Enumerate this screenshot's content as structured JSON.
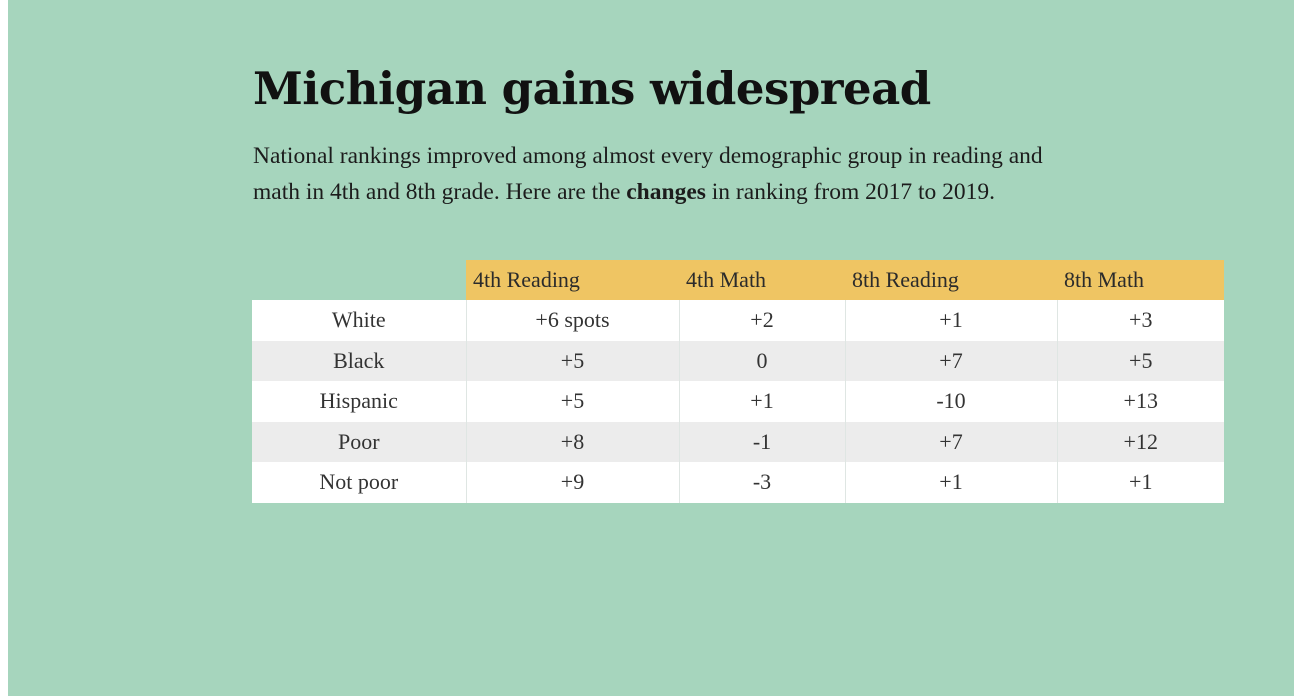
{
  "header": {
    "title": "Michigan gains widespread",
    "subtitle_before": "National rankings improved among almost every demographic group in reading and math in 4th and 8th grade. Here are the ",
    "subtitle_bold": "changes",
    "subtitle_after": " in ranking from 2017 to 2019."
  },
  "colors": {
    "background": "#a6d5bd",
    "header_fill": "#efc563",
    "row_white": "#ffffff",
    "row_gray": "#ececec"
  },
  "chart_data": {
    "type": "table",
    "columns": [
      "4th Reading",
      "4th Math",
      "8th Reading",
      "8th Math"
    ],
    "rows": [
      {
        "label": "White",
        "values": [
          "+6 spots",
          "+2",
          "+1",
          "+3"
        ]
      },
      {
        "label": "Black",
        "values": [
          "+5",
          "0",
          "+7",
          "+5"
        ]
      },
      {
        "label": "Hispanic",
        "values": [
          "+5",
          "+1",
          "-10",
          "+13"
        ]
      },
      {
        "label": "Poor",
        "values": [
          "+8",
          "-1",
          "+7",
          "+12"
        ]
      },
      {
        "label": "Not poor",
        "values": [
          "+9",
          "-3",
          "+1",
          "+1"
        ]
      }
    ]
  }
}
